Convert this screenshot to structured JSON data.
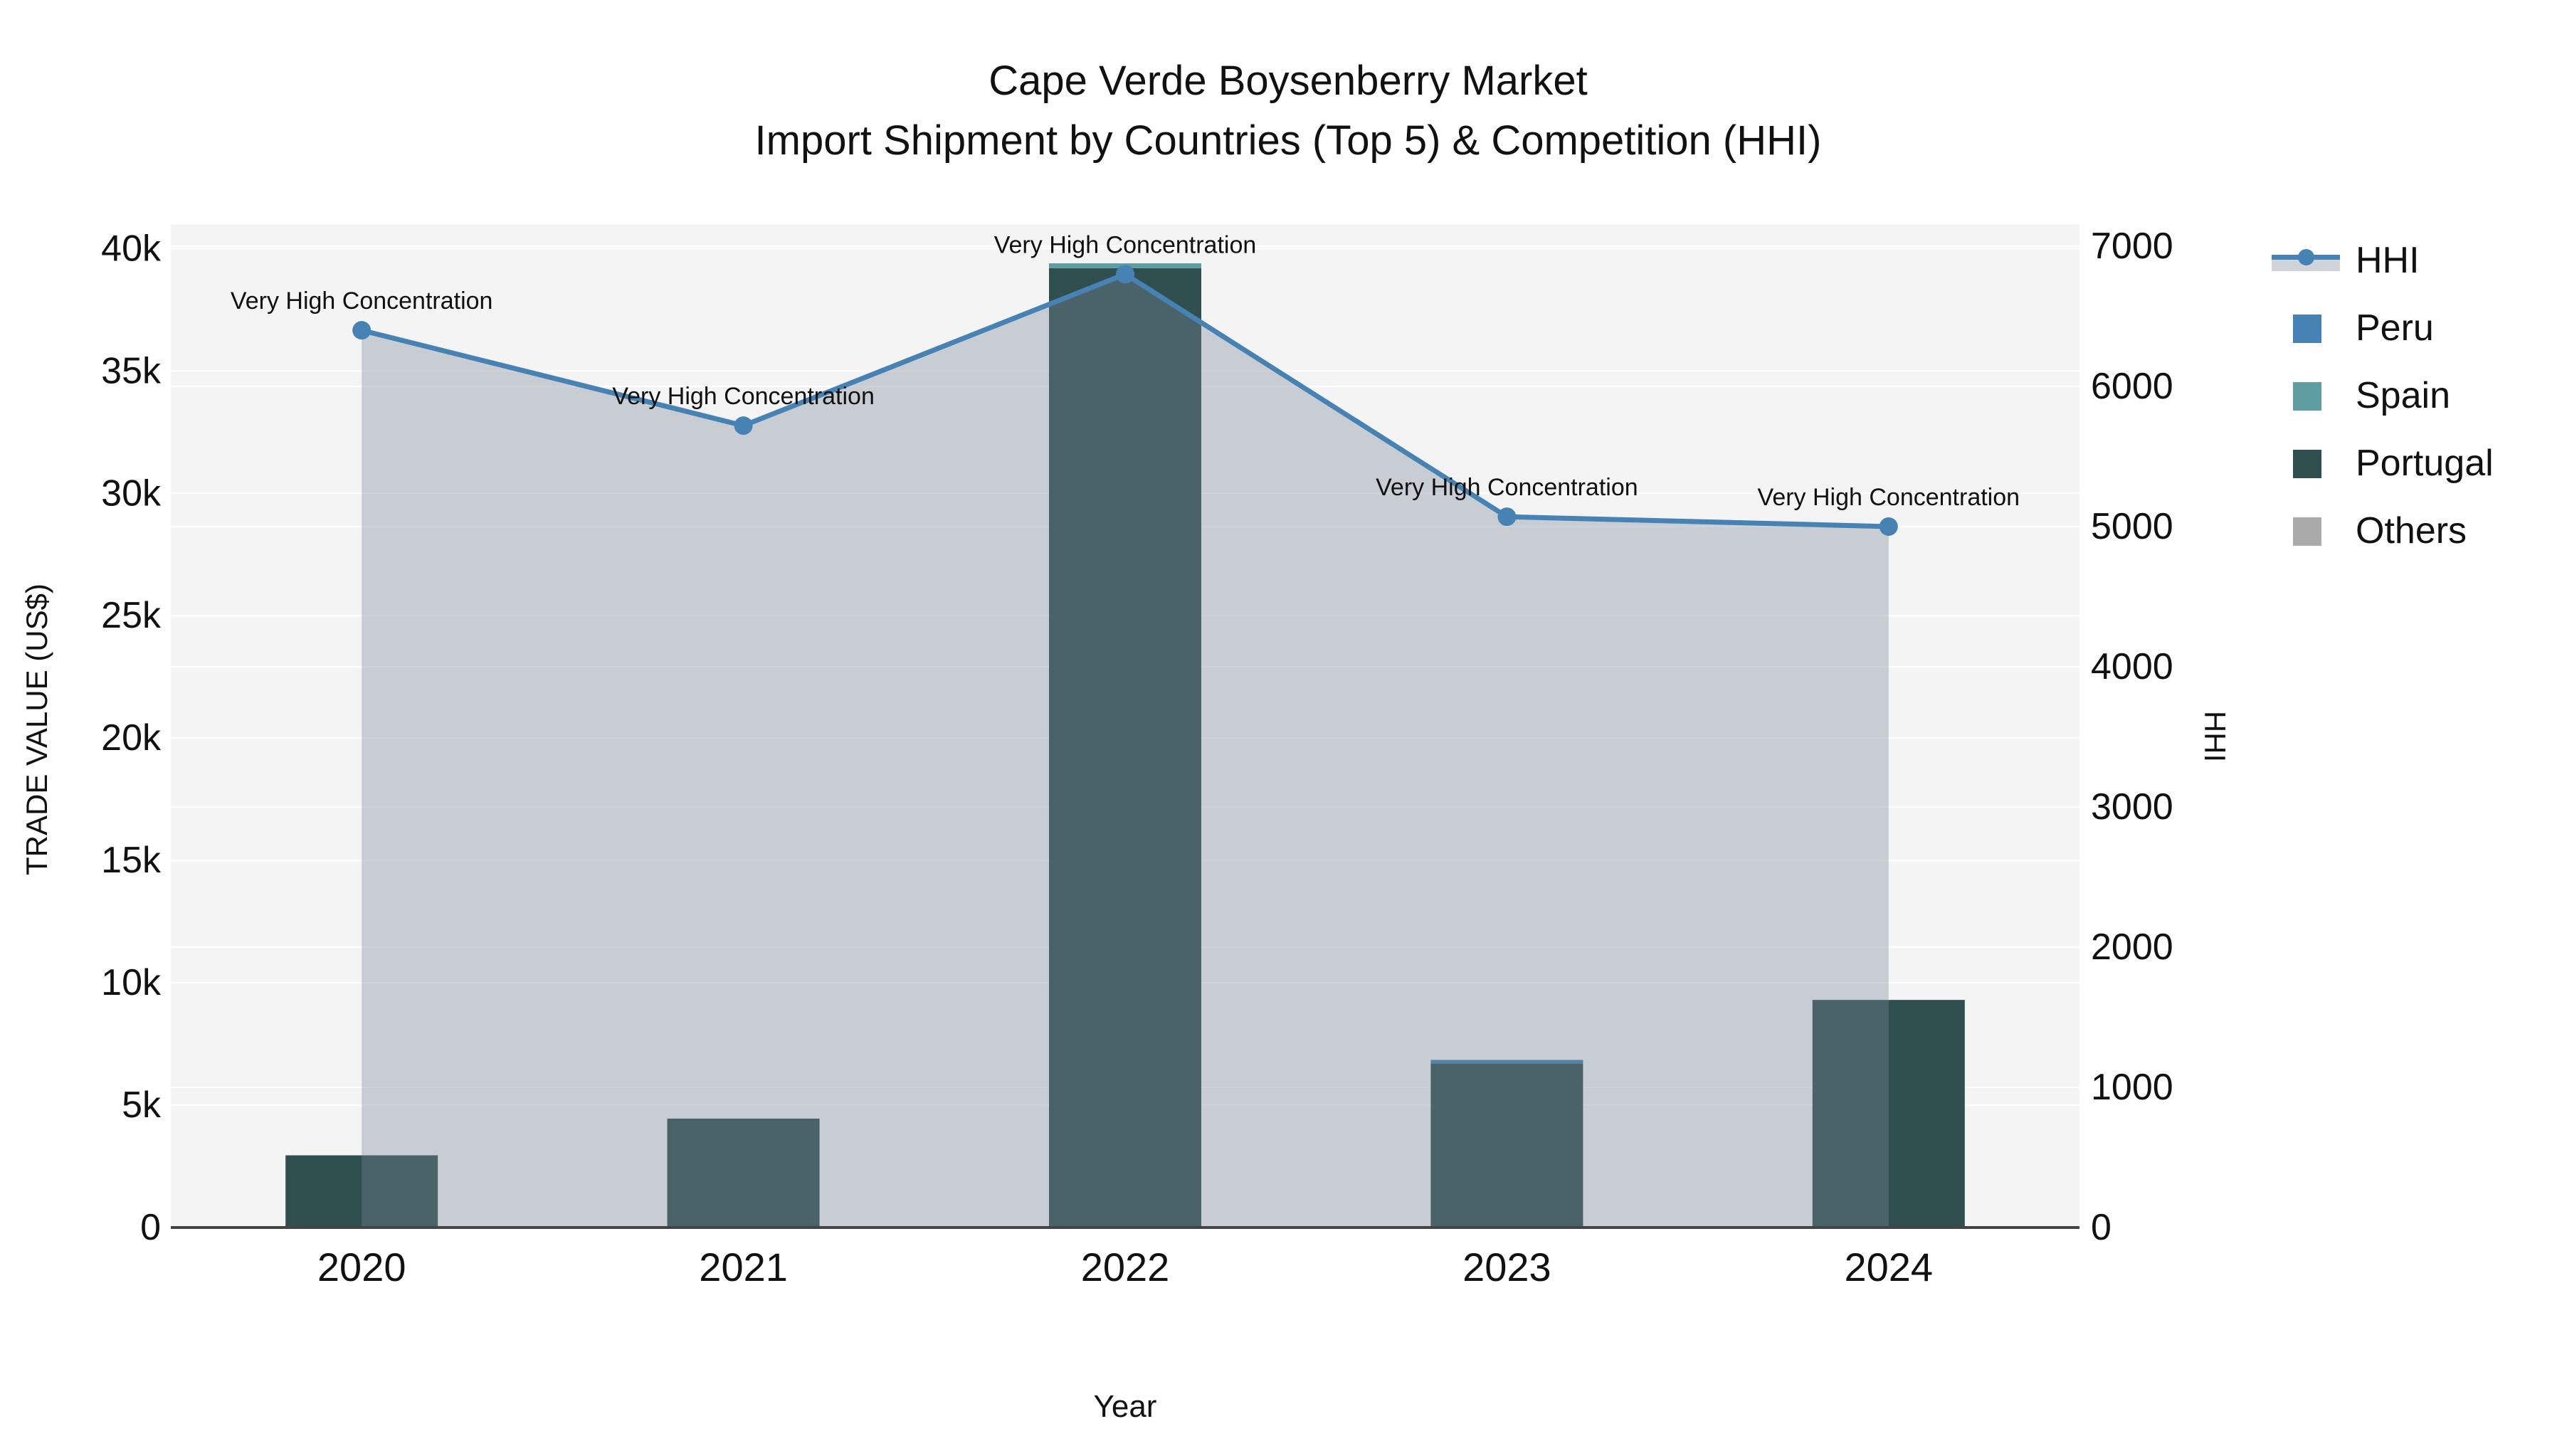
{
  "title": {
    "line1": "Cape Verde Boysenberry Market",
    "line2": "Import Shipment by Countries (Top 5) & Competition (HHI)"
  },
  "axes": {
    "x": {
      "title": "Year",
      "categories": [
        "2020",
        "2021",
        "2022",
        "2023",
        "2024"
      ]
    },
    "left": {
      "title": "TRADE VALUE (US$)",
      "tick_labels": [
        "0",
        "5k",
        "10k",
        "15k",
        "20k",
        "25k",
        "30k",
        "35k",
        "40k"
      ],
      "tick_values": [
        0,
        5000,
        10000,
        15000,
        20000,
        25000,
        30000,
        35000,
        40000
      ]
    },
    "right": {
      "title": "HHI",
      "tick_labels": [
        "0",
        "1000",
        "2000",
        "3000",
        "4000",
        "5000",
        "6000",
        "7000"
      ],
      "tick_values": [
        0,
        1000,
        2000,
        3000,
        4000,
        5000,
        6000,
        7000
      ]
    }
  },
  "legend": {
    "items": [
      {
        "label": "HHI",
        "type": "line-area",
        "color": "#4682b4"
      },
      {
        "label": "Peru",
        "type": "square",
        "color": "#4682b4"
      },
      {
        "label": "Spain",
        "type": "square",
        "color": "#5f9ea0"
      },
      {
        "label": "Portugal",
        "type": "square",
        "color": "#2f4f4f"
      },
      {
        "label": "Others",
        "type": "square",
        "color": "#aaaaaa"
      }
    ]
  },
  "colors": {
    "plot_bg": "#f4f4f4",
    "gridline": "rgba(255,255,255,0.9)",
    "axis_line": "#444444",
    "hhi_line": "#4682b4",
    "hhi_fill": "rgba(119,136,153,0.36)",
    "text": "#111111"
  },
  "chart_data": {
    "type": "bar+line",
    "title": "Cape Verde Boysenberry Market — Import Shipment by Countries (Top 5) & Competition (HHI)",
    "xlabel": "Year",
    "ylabel_left": "TRADE VALUE (US$)",
    "ylabel_right": "HHI",
    "categories": [
      "2020",
      "2021",
      "2022",
      "2023",
      "2024"
    ],
    "bar_stack_order_bottom_to_top": [
      "Others",
      "Portugal",
      "Spain",
      "Peru"
    ],
    "bar_series": [
      {
        "name": "Peru",
        "color": "#4682b4",
        "values": [
          0,
          0,
          0,
          150,
          0
        ]
      },
      {
        "name": "Spain",
        "color": "#5f9ea0",
        "values": [
          0,
          0,
          200,
          0,
          0
        ]
      },
      {
        "name": "Portugal",
        "color": "#2f4f4f",
        "values": [
          2950,
          4450,
          39200,
          6700,
          9300
        ]
      },
      {
        "name": "Others",
        "color": "#aaaaaa",
        "values": [
          0,
          0,
          0,
          0,
          0
        ]
      }
    ],
    "line_series": {
      "name": "HHI",
      "axis": "right",
      "color": "#4682b4",
      "fill": "rgba(119,136,153,0.36)",
      "values": [
        6400,
        5720,
        6800,
        5070,
        5000
      ]
    },
    "annotations": [
      "Very High Concentration",
      "Very High Concentration",
      "Very High Concentration",
      "Very High Concentration",
      "Very High Concentration"
    ],
    "ylim_left": [
      0,
      41000
    ],
    "ylim_right": [
      0,
      7157
    ],
    "grid": true,
    "legend_position": "right"
  }
}
